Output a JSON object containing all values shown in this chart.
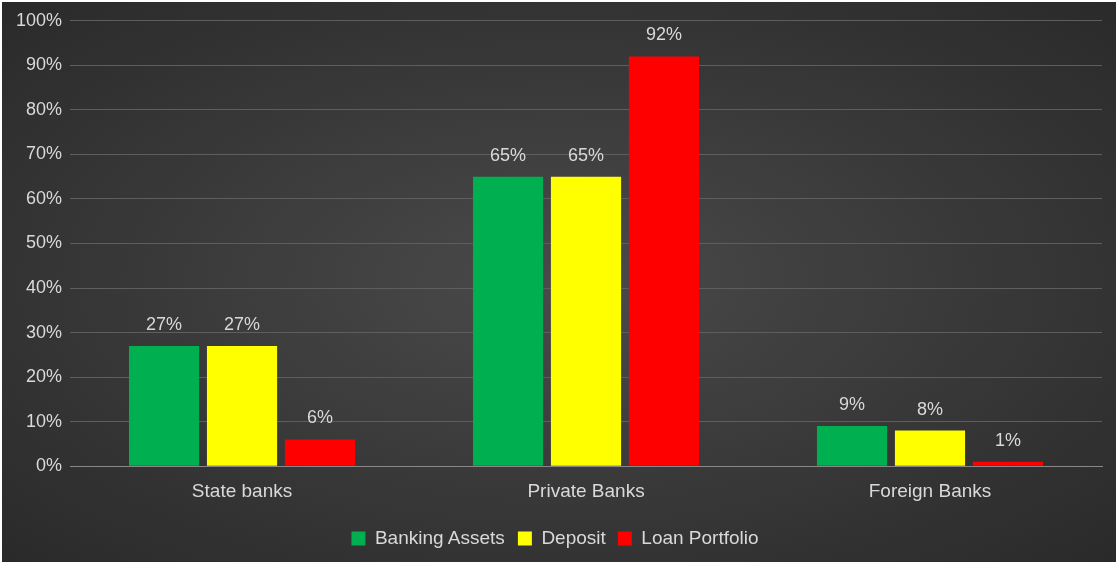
{
  "chart_data": {
    "type": "bar",
    "categories": [
      "State banks",
      "Private Banks",
      "Foreign Banks"
    ],
    "series": [
      {
        "name": "Banking Assets",
        "color": "#00b050",
        "values": [
          27,
          65,
          9
        ],
        "value_labels": [
          "27%",
          "65%",
          "9%"
        ]
      },
      {
        "name": "Deposit",
        "color": "#ffff00",
        "values": [
          27,
          65,
          8
        ],
        "value_labels": [
          "27%",
          "65%",
          "8%"
        ]
      },
      {
        "name": "Loan Portfolio",
        "color": "#ff0000",
        "values": [
          6,
          92,
          1
        ],
        "value_labels": [
          "6%",
          "92%",
          "1%"
        ]
      }
    ],
    "ylim": [
      0,
      100
    ],
    "yticks": [
      {
        "value": 0,
        "label": "0%"
      },
      {
        "value": 10,
        "label": "10%"
      },
      {
        "value": 20,
        "label": "20%"
      },
      {
        "value": 30,
        "label": "30%"
      },
      {
        "value": 40,
        "label": "40%"
      },
      {
        "value": 50,
        "label": "50%"
      },
      {
        "value": 60,
        "label": "60%"
      },
      {
        "value": 70,
        "label": "70%"
      },
      {
        "value": 80,
        "label": "80%"
      },
      {
        "value": 90,
        "label": "90%"
      },
      {
        "value": 100,
        "label": "100%"
      }
    ],
    "grid": "y",
    "legend": "bottom"
  }
}
